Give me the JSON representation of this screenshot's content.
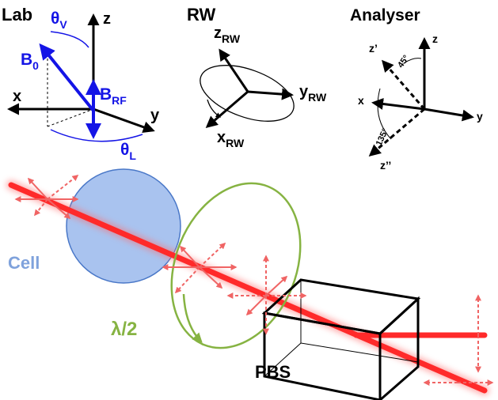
{
  "colors": {
    "black": "#000000",
    "blue": "#1414e6",
    "beam_red": "#ff2a2a",
    "polarization_red": "#f06464",
    "cell_fill": "#a9c3ef",
    "cell_stroke": "#4a78c8",
    "cell_label": "#7fa2dc",
    "green": "#86b342"
  },
  "lab": {
    "title": "Lab",
    "theta_v": "θV",
    "b0": "B0",
    "brf": "BRF",
    "theta_l": "θL",
    "x": "x",
    "y": "y",
    "z": "z"
  },
  "rw": {
    "title": "RW",
    "z": "zRW",
    "y": "yRW",
    "x": "xRW"
  },
  "analyser": {
    "title": "Analyser",
    "z": "z",
    "x": "x",
    "y": "y",
    "z_prime": "z’",
    "z_double_prime": "z’’",
    "angle_45": "45°",
    "angle_135": "135°"
  },
  "setup": {
    "cell_label": "Cell",
    "waveplate_label": "λ/2",
    "pbs_label": "PBS"
  }
}
